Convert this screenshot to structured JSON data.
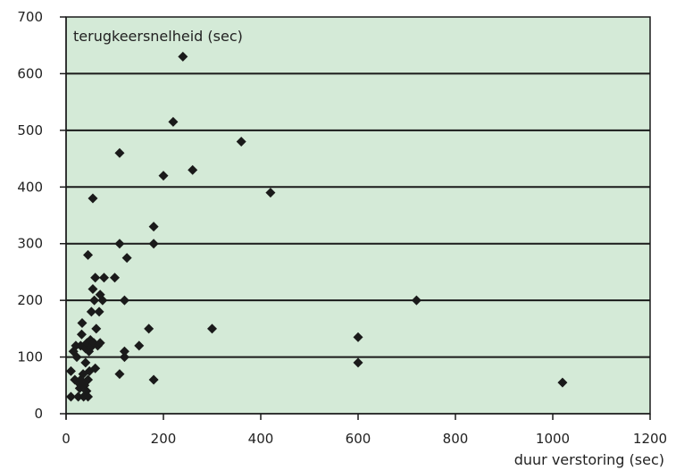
{
  "chart_data": {
    "type": "scatter",
    "title": "",
    "ylabel": "terugkeersnelheid (sec)",
    "xlabel": "duur verstoring (sec)",
    "xlim": [
      0,
      1200
    ],
    "ylim": [
      0,
      700
    ],
    "xticks": [
      0,
      200,
      400,
      600,
      800,
      1000,
      1200
    ],
    "yticks": [
      0,
      100,
      200,
      300,
      400,
      500,
      600,
      700
    ],
    "grid": "horizontal",
    "colors": {
      "plot_background": "#d4ead7",
      "marker": "#1a1a1a",
      "gridline": "#1a1a1a"
    },
    "points": [
      {
        "x": 10,
        "y": 30
      },
      {
        "x": 10,
        "y": 75
      },
      {
        "x": 15,
        "y": 110
      },
      {
        "x": 18,
        "y": 60
      },
      {
        "x": 20,
        "y": 120
      },
      {
        "x": 22,
        "y": 100
      },
      {
        "x": 25,
        "y": 30
      },
      {
        "x": 25,
        "y": 55
      },
      {
        "x": 28,
        "y": 45
      },
      {
        "x": 30,
        "y": 60
      },
      {
        "x": 30,
        "y": 120
      },
      {
        "x": 32,
        "y": 140
      },
      {
        "x": 33,
        "y": 160
      },
      {
        "x": 35,
        "y": 70
      },
      {
        "x": 36,
        "y": 30
      },
      {
        "x": 38,
        "y": 50
      },
      {
        "x": 40,
        "y": 90
      },
      {
        "x": 40,
        "y": 115
      },
      {
        "x": 42,
        "y": 40
      },
      {
        "x": 43,
        "y": 125
      },
      {
        "x": 45,
        "y": 30
      },
      {
        "x": 45,
        "y": 280
      },
      {
        "x": 45,
        "y": 60
      },
      {
        "x": 47,
        "y": 110
      },
      {
        "x": 48,
        "y": 75
      },
      {
        "x": 50,
        "y": 130
      },
      {
        "x": 52,
        "y": 180
      },
      {
        "x": 54,
        "y": 120
      },
      {
        "x": 55,
        "y": 220
      },
      {
        "x": 55,
        "y": 380
      },
      {
        "x": 57,
        "y": 125
      },
      {
        "x": 58,
        "y": 200
      },
      {
        "x": 60,
        "y": 80
      },
      {
        "x": 60,
        "y": 240
      },
      {
        "x": 62,
        "y": 150
      },
      {
        "x": 65,
        "y": 120
      },
      {
        "x": 68,
        "y": 180
      },
      {
        "x": 70,
        "y": 210
      },
      {
        "x": 70,
        "y": 125
      },
      {
        "x": 75,
        "y": 200
      },
      {
        "x": 78,
        "y": 240
      },
      {
        "x": 100,
        "y": 240
      },
      {
        "x": 110,
        "y": 460
      },
      {
        "x": 110,
        "y": 300
      },
      {
        "x": 110,
        "y": 70
      },
      {
        "x": 120,
        "y": 100
      },
      {
        "x": 120,
        "y": 110
      },
      {
        "x": 120,
        "y": 200
      },
      {
        "x": 125,
        "y": 275
      },
      {
        "x": 150,
        "y": 120
      },
      {
        "x": 170,
        "y": 150
      },
      {
        "x": 180,
        "y": 330
      },
      {
        "x": 180,
        "y": 300
      },
      {
        "x": 180,
        "y": 60
      },
      {
        "x": 200,
        "y": 420
      },
      {
        "x": 220,
        "y": 515
      },
      {
        "x": 240,
        "y": 630
      },
      {
        "x": 260,
        "y": 430
      },
      {
        "x": 300,
        "y": 150
      },
      {
        "x": 360,
        "y": 480
      },
      {
        "x": 420,
        "y": 390
      },
      {
        "x": 600,
        "y": 135
      },
      {
        "x": 600,
        "y": 90
      },
      {
        "x": 720,
        "y": 200
      },
      {
        "x": 1020,
        "y": 55
      }
    ]
  }
}
